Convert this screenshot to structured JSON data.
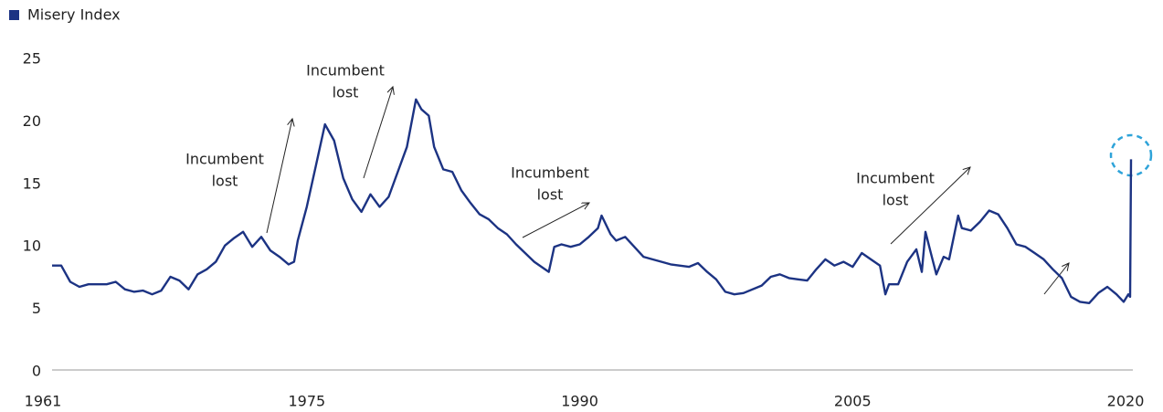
{
  "chart_data": {
    "type": "line",
    "series": [
      {
        "name": "Misery Index",
        "color": "#1c3383",
        "x": [
          1961,
          1961.5,
          1962,
          1962.5,
          1963,
          1964,
          1964.5,
          1965,
          1965.5,
          1966,
          1966.5,
          1967,
          1967.5,
          1968,
          1968.5,
          1969,
          1969.5,
          1970,
          1970.5,
          1971,
          1971.5,
          1972,
          1972.5,
          1973,
          1973.5,
          1974,
          1974.3,
          1974.5,
          1975,
          1975.5,
          1976,
          1976.5,
          1977,
          1977.5,
          1978,
          1978.5,
          1979,
          1979.5,
          1980,
          1980.5,
          1981,
          1981.3,
          1981.7,
          1982,
          1982.5,
          1983,
          1983.5,
          1984,
          1984.5,
          1985,
          1985.5,
          1986,
          1986.5,
          1987,
          1987.5,
          1988,
          1988.3,
          1988.6,
          1989,
          1989.5,
          1990,
          1990.5,
          1991,
          1991.2,
          1991.7,
          1992,
          1992.5,
          1993,
          1993.5,
          1994,
          1994.5,
          1995,
          1996,
          1996.5,
          1997,
          1997.5,
          1998,
          1998.5,
          1999,
          2000,
          2000.5,
          2001,
          2001.5,
          2002,
          2002.5,
          2003,
          2003.5,
          2004,
          2004.5,
          2005,
          2005.5,
          2006,
          2006.5,
          2006.8,
          2007,
          2007.5,
          2008,
          2008.5,
          2008.8,
          2009,
          2009.3,
          2009.6,
          2010,
          2010.3,
          2010.8,
          2011,
          2011.5,
          2012,
          2012.5,
          2013,
          2013.5,
          2014,
          2014.5,
          2015,
          2015.5,
          2016,
          2016.5,
          2017,
          2017.5,
          2018,
          2018.5,
          2019,
          2019.5,
          2019.9,
          2020.15,
          2020.25,
          2020.3
        ],
        "values": [
          8.5,
          8.5,
          7.2,
          6.8,
          7.0,
          7.0,
          7.2,
          6.6,
          6.4,
          6.5,
          6.2,
          6.5,
          7.6,
          7.3,
          6.6,
          7.8,
          8.2,
          8.8,
          10.1,
          10.7,
          11.2,
          10.0,
          10.8,
          9.7,
          9.2,
          8.6,
          8.8,
          10.5,
          13.2,
          16.5,
          19.8,
          18.5,
          15.5,
          13.8,
          12.8,
          14.2,
          13.2,
          14.0,
          16.0,
          18.0,
          21.8,
          21.0,
          20.5,
          18.0,
          16.2,
          16.0,
          14.5,
          13.5,
          12.6,
          12.2,
          11.5,
          11.0,
          10.2,
          9.5,
          8.8,
          8.3,
          8.0,
          10.0,
          10.2,
          10.0,
          10.2,
          10.8,
          11.5,
          12.5,
          11.0,
          10.5,
          10.8,
          10.0,
          9.2,
          9.0,
          8.8,
          8.6,
          8.4,
          8.7,
          8.0,
          7.4,
          6.4,
          6.2,
          6.3,
          6.9,
          7.6,
          7.8,
          7.5,
          7.4,
          7.3,
          8.2,
          9.0,
          8.5,
          8.8,
          8.4,
          9.5,
          9.0,
          8.5,
          6.2,
          7.0,
          7.0,
          8.8,
          9.8,
          8.0,
          11.2,
          9.5,
          7.8,
          9.2,
          9.0,
          12.5,
          11.5,
          11.3,
          12.0,
          12.9,
          12.6,
          11.5,
          10.2,
          10.0,
          9.5,
          9.0,
          8.2,
          7.5,
          6.0,
          5.6,
          5.5,
          6.3,
          6.8,
          6.2,
          5.6,
          6.2,
          6.0,
          17.0
        ]
      }
    ],
    "xlim": [
      1961,
      2020.4
    ],
    "xticks": [
      1961,
      1975,
      1990,
      2005,
      2020
    ],
    "ylim": [
      0,
      25
    ],
    "yticks": [
      0,
      5,
      10,
      15,
      20,
      25
    ],
    "annotations": [
      [
        "Incumbent",
        "lost"
      ],
      [
        "Incumbent",
        "lost"
      ],
      [
        "Incumbent",
        "lost"
      ],
      [
        "Incumbent",
        "lost"
      ]
    ]
  }
}
